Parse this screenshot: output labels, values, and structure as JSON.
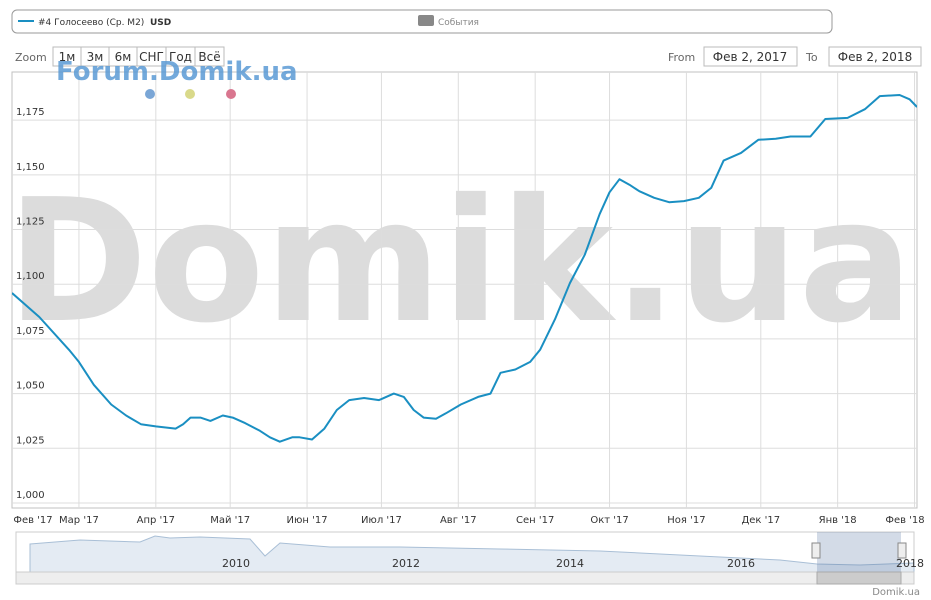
{
  "chart_data": {
    "type": "line",
    "legend": {
      "series_name": "#4 Голосеево (Ср. M2)",
      "unit": "USD",
      "events": "События"
    },
    "watermark": "Domik.ua",
    "forum_watermark": "Forum.Domik.ua",
    "xlim": [
      1,
      366
    ],
    "ylim": [
      997.7,
      1197
    ],
    "xticks": [
      {
        "value": 0,
        "label": "Фев '17"
      },
      {
        "value": 28,
        "label": "Мар '17"
      },
      {
        "value": 59,
        "label": "Апр '17"
      },
      {
        "value": 89,
        "label": "Май '17"
      },
      {
        "value": 120,
        "label": "Июн '17"
      },
      {
        "value": 150,
        "label": "Июл '17"
      },
      {
        "value": 181,
        "label": "Авг '17"
      },
      {
        "value": 212,
        "label": "Сен '17"
      },
      {
        "value": 242,
        "label": "Окт '17"
      },
      {
        "value": 273,
        "label": "Ноя '17"
      },
      {
        "value": 303,
        "label": "Дек '17"
      },
      {
        "value": 334,
        "label": "Янв '18"
      },
      {
        "value": 365,
        "label": "Фев '18"
      }
    ],
    "yticks": [
      {
        "value": 1000,
        "label": "1,000"
      },
      {
        "value": 1025,
        "label": "1,025"
      },
      {
        "value": 1050,
        "label": "1,050"
      },
      {
        "value": 1075,
        "label": "1,075"
      },
      {
        "value": 1100,
        "label": "1,100"
      },
      {
        "value": 1125,
        "label": "1,125"
      },
      {
        "value": 1150,
        "label": "1,150"
      },
      {
        "value": 1175,
        "label": "1,175"
      }
    ],
    "grid": true,
    "series": [
      {
        "name": "#4 Голосеево (Ср. M2)",
        "color": "#1a8fc2",
        "x": [
          1,
          12,
          24,
          28,
          34,
          41,
          47,
          53,
          59,
          67,
          70,
          73,
          77,
          81,
          86,
          90,
          95,
          101,
          105,
          109,
          114,
          117,
          122,
          127,
          132,
          137,
          143,
          149,
          155,
          159,
          163,
          167,
          172,
          176,
          182,
          189,
          194,
          198,
          204,
          210,
          214,
          220,
          226,
          232,
          238,
          242,
          246,
          250,
          254,
          260,
          266,
          272,
          278,
          283,
          288,
          295,
          302,
          309,
          315,
          323,
          329,
          338,
          345,
          351,
          359,
          363,
          366
        ],
        "values": [
          1096,
          1085,
          1070,
          1064.5,
          1054,
          1045,
          1040,
          1036,
          1035,
          1034,
          1036,
          1039,
          1039,
          1037.5,
          1040,
          1039,
          1036.5,
          1033,
          1030,
          1028,
          1030,
          1030,
          1029,
          1034,
          1042.5,
          1047,
          1048,
          1047,
          1050,
          1048.5,
          1042.5,
          1039,
          1038.5,
          1041,
          1045,
          1048.5,
          1050,
          1059.5,
          1061,
          1064.5,
          1070,
          1084,
          1100.5,
          1113.5,
          1132,
          1142,
          1148,
          1145.5,
          1142.5,
          1139.5,
          1137.5,
          1138,
          1139.5,
          1144,
          1156.5,
          1160,
          1166,
          1166.5,
          1167.5,
          1167.5,
          1175.5,
          1176,
          1180,
          1186,
          1186.5,
          1184.5,
          1181
        ]
      }
    ]
  },
  "toolbar": {
    "zoom": "Zoom",
    "buttons": [
      "1м",
      "3м",
      "6м",
      "СНГ",
      "Год",
      "Всё"
    ],
    "from_label": "From",
    "from": "Фев 2, 2017",
    "to_label": "To",
    "to": "Фев 2, 2018"
  },
  "navigator": {
    "labels": [
      "2010",
      "2012",
      "2014",
      "2016",
      "2018"
    ]
  },
  "credit": "Domik.ua"
}
